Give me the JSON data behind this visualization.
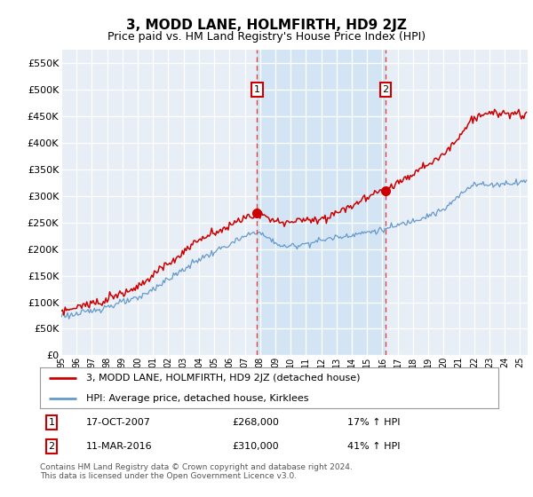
{
  "title": "3, MODD LANE, HOLMFIRTH, HD9 2JZ",
  "subtitle": "Price paid vs. HM Land Registry's House Price Index (HPI)",
  "hpi_label": "HPI: Average price, detached house, Kirklees",
  "property_label": "3, MODD LANE, HOLMFIRTH, HD9 2JZ (detached house)",
  "footnote": "Contains HM Land Registry data © Crown copyright and database right 2024.\nThis data is licensed under the Open Government Licence v3.0.",
  "transaction1": {
    "label": "1",
    "date": "17-OCT-2007",
    "price": "£268,000",
    "hpi": "17% ↑ HPI",
    "x_year": 2007.8
  },
  "transaction2": {
    "label": "2",
    "date": "11-MAR-2016",
    "price": "£310,000",
    "hpi": "41% ↑ HPI",
    "x_year": 2016.2
  },
  "ylim": [
    0,
    575000
  ],
  "yticks": [
    0,
    50000,
    100000,
    150000,
    200000,
    250000,
    300000,
    350000,
    400000,
    450000,
    500000,
    550000
  ],
  "xlim_start": 1995.0,
  "xlim_end": 2025.5,
  "hpi_color": "#6699cc",
  "property_color": "#cc0000",
  "bg_color": "#e8eef5",
  "grid_color": "#d0d8e0",
  "span_color": "#d0e4f4",
  "dashed_line_color": "#dd4444",
  "box_color": "#cc0000",
  "title_fontsize": 11,
  "subtitle_fontsize": 9
}
